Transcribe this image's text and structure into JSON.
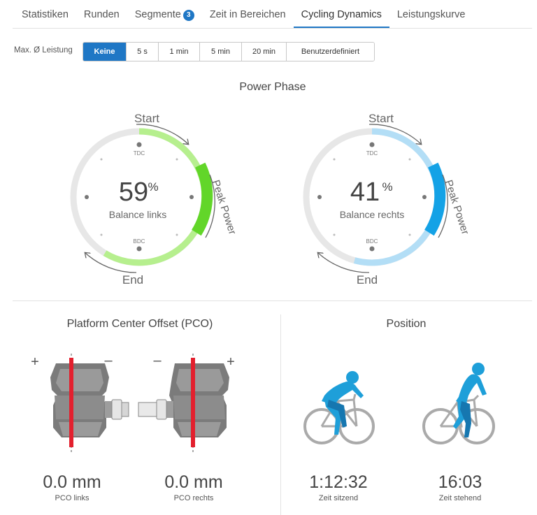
{
  "tabs": [
    {
      "label": "Statistiken"
    },
    {
      "label": "Runden"
    },
    {
      "label": "Segmente",
      "badge": "3"
    },
    {
      "label": "Zeit in Bereichen"
    },
    {
      "label": "Cycling Dynamics",
      "active": true
    },
    {
      "label": "Leistungskurve"
    }
  ],
  "filter": {
    "label": "Max. Ø Leistung",
    "options": [
      "Keine",
      "5 s",
      "1 min",
      "5 min",
      "20 min",
      "Benutzerdefiniert"
    ],
    "selected": "Keine"
  },
  "power_phase": {
    "title": "Power Phase",
    "left": {
      "value": "59",
      "unit": "%",
      "label": "Balance links",
      "start": "Start",
      "end": "End",
      "peak": "Peak Power",
      "tdc": "TDC",
      "bdc": "BDC",
      "color_phase": "#b6ef8e",
      "color_peak": "#62d629"
    },
    "right": {
      "value": "41",
      "unit": "%",
      "label": "Balance rechts",
      "start": "Start",
      "end": "End",
      "peak": "Peak Power",
      "tdc": "TDC",
      "bdc": "BDC",
      "color_phase": "#b3def6",
      "color_peak": "#14a2e6"
    }
  },
  "pco": {
    "title": "Platform Center Offset (PCO)",
    "left": {
      "value": "0.0 mm",
      "label": "PCO links",
      "plus": "+",
      "minus": "–"
    },
    "right": {
      "value": "0.0 mm",
      "label": "PCO rechts",
      "plus": "+",
      "minus": "–"
    }
  },
  "position": {
    "title": "Position",
    "seated": {
      "value": "1:12:32",
      "label": "Zeit sitzend"
    },
    "standing": {
      "value": "16:03",
      "label": "Zeit stehend"
    }
  },
  "colors": {
    "accent": "#1f77c5",
    "rider": "#1e9fd9",
    "pedal_line": "#e3202e"
  }
}
